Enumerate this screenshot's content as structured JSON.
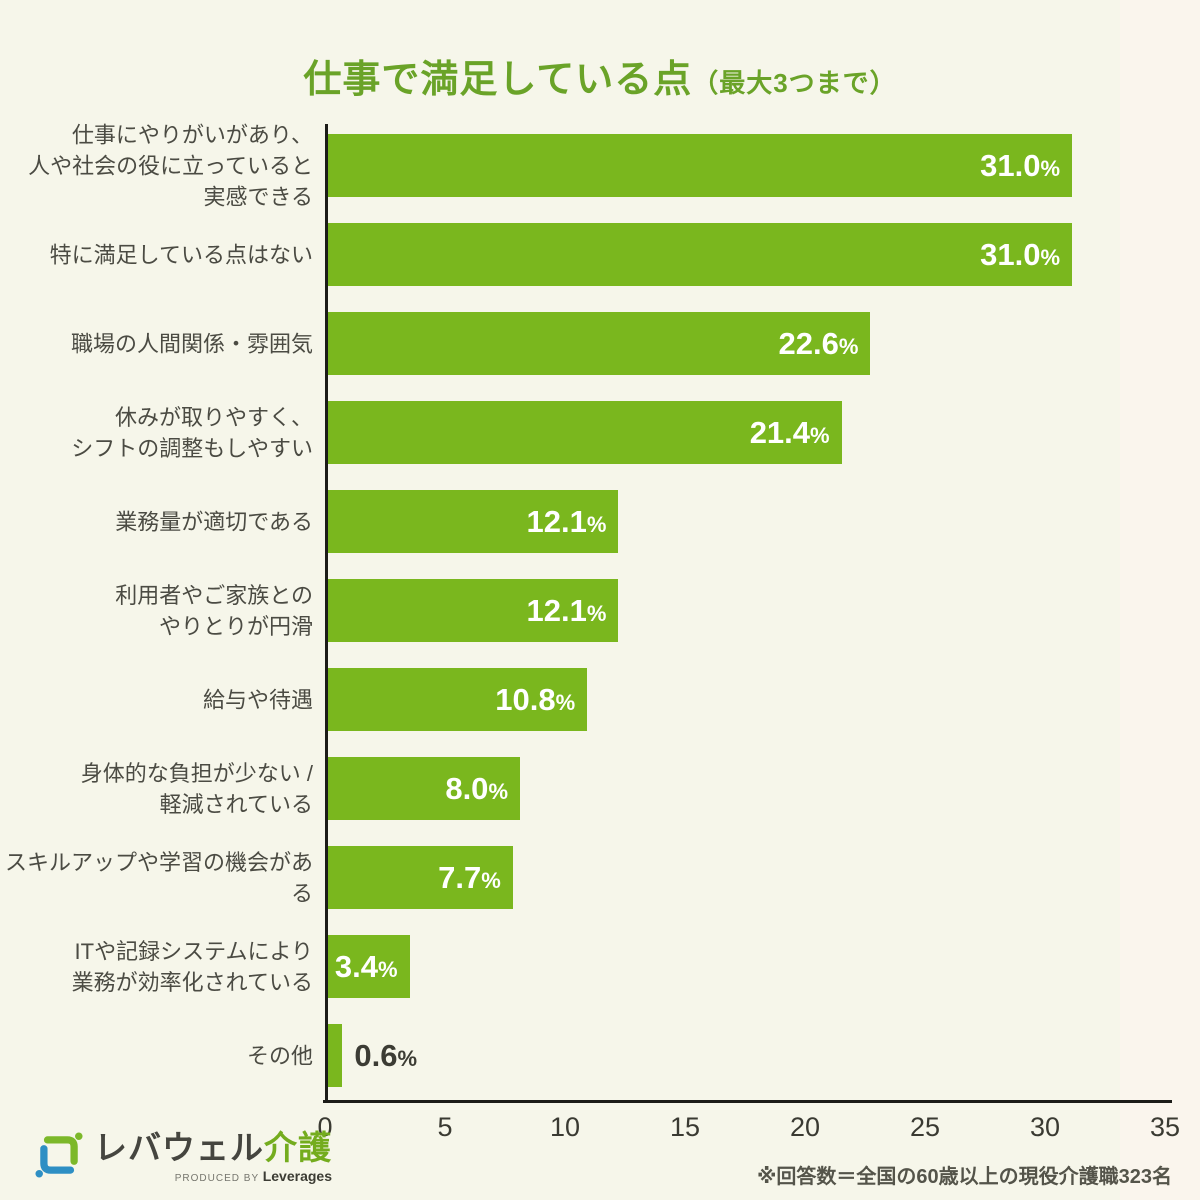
{
  "page": {
    "title": "仕事で満足している点",
    "title_suffix": "（最大3つまで）",
    "footnote": "※回答数＝全国の60歳以上の現役介護職323名",
    "background_color": "#f6f6ea",
    "accent_color": "#6aa328"
  },
  "logo": {
    "name_main": "レバウェル",
    "name_accent": "介護",
    "produced_by": "PRODUCED BY ",
    "company": "Leverages"
  },
  "chart_data": {
    "type": "bar",
    "orientation": "horizontal",
    "title": "仕事で満足している点（最大3つまで）",
    "categories": [
      "仕事にやりがいがあり、\n人や社会の役に立っていると\n実感できる",
      "特に満足している点はない",
      "職場の人間関係・雰囲気",
      "休みが取りやすく、\nシフトの調整もしやすい",
      "業務量が適切である",
      "利用者やご家族との\nやりとりが円滑",
      "給与や待遇",
      "身体的な負担が少ない /\n軽減されている",
      "スキルアップや学習の機会がある",
      "ITや記録システムにより\n業務が効率化されている",
      "その他"
    ],
    "values": [
      31.0,
      31.0,
      22.6,
      21.4,
      12.1,
      12.1,
      10.8,
      8.0,
      7.7,
      3.4,
      0.6
    ],
    "value_labels": [
      "31.0",
      "31.0",
      "22.6",
      "21.4",
      "12.1",
      "12.1",
      "10.8",
      "8.0",
      "7.7",
      "3.4",
      "0.6"
    ],
    "unit": "%",
    "xlabel": "",
    "ylabel": "",
    "xlim": [
      0,
      35
    ],
    "x_ticks": [
      0,
      5,
      10,
      15,
      20,
      25,
      30,
      35
    ],
    "grid": false,
    "legend": false,
    "bar_color": "#7ab71e",
    "label_inside_color": "#ffffff",
    "label_outside_color": "#3c3c34"
  }
}
